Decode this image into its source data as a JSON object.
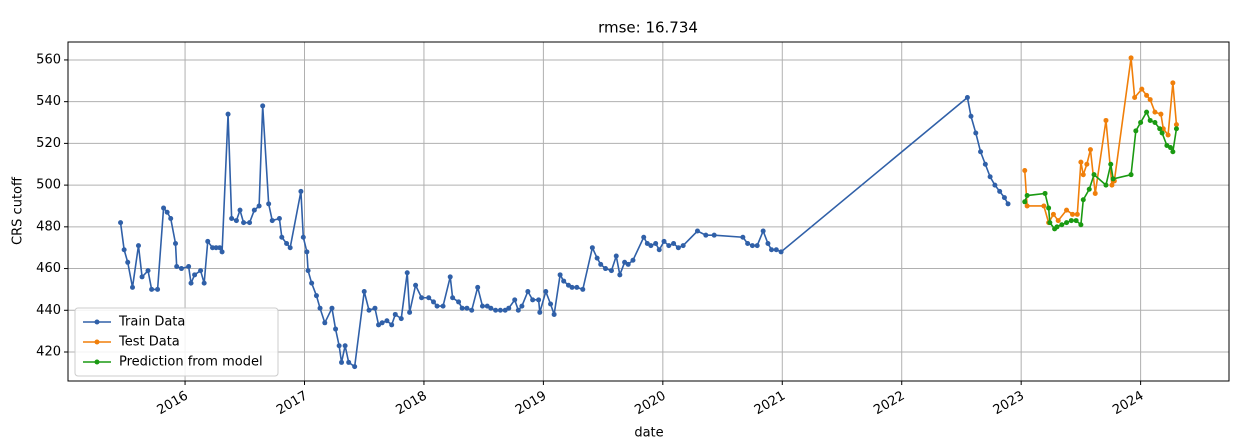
{
  "chart_data": {
    "type": "line",
    "title": "rmse: 16.734",
    "x_label": "date",
    "y_label": "CRS cutoff",
    "xlim": [
      2015.02,
      2024.74
    ],
    "xticks": [
      2016,
      2017,
      2018,
      2019,
      2020,
      2021,
      2022,
      2023,
      2024
    ],
    "ylim": [
      406.1,
      568.6
    ],
    "yticks": [
      420,
      440,
      460,
      480,
      500,
      520,
      540,
      560
    ],
    "grid": true,
    "legend": "lower left",
    "series": [
      {
        "name": "Train Data",
        "color": "#3060a8",
        "x": [
          2015.46,
          2015.49,
          2015.52,
          2015.56,
          2015.61,
          2015.64,
          2015.69,
          2015.72,
          2015.77,
          2015.82,
          2015.85,
          2015.88,
          2015.92,
          2015.93,
          2015.97,
          2016.03,
          2016.05,
          2016.08,
          2016.13,
          2016.16,
          2016.19,
          2016.23,
          2016.26,
          2016.29,
          2016.31,
          2016.36,
          2016.39,
          2016.43,
          2016.46,
          2016.49,
          2016.54,
          2016.58,
          2016.62,
          2016.65,
          2016.7,
          2016.73,
          2016.79,
          2016.81,
          2016.85,
          2016.88,
          2016.97,
          2016.99,
          2017.02,
          2017.03,
          2017.06,
          2017.1,
          2017.13,
          2017.17,
          2017.23,
          2017.26,
          2017.29,
          2017.31,
          2017.34,
          2017.37,
          2017.42,
          2017.5,
          2017.54,
          2017.59,
          2017.62,
          2017.65,
          2017.69,
          2017.73,
          2017.76,
          2017.81,
          2017.86,
          2017.88,
          2017.93,
          2017.98,
          2018.04,
          2018.08,
          2018.11,
          2018.16,
          2018.22,
          2018.24,
          2018.29,
          2018.32,
          2018.36,
          2018.4,
          2018.45,
          2018.49,
          2018.53,
          2018.56,
          2018.6,
          2018.64,
          2018.68,
          2018.71,
          2018.76,
          2018.79,
          2018.82,
          2018.87,
          2018.91,
          2018.96,
          2018.97,
          2019.02,
          2019.06,
          2019.09,
          2019.14,
          2019.17,
          2019.21,
          2019.24,
          2019.28,
          2019.33,
          2019.41,
          2019.45,
          2019.48,
          2019.52,
          2019.57,
          2019.61,
          2019.64,
          2019.68,
          2019.71,
          2019.75,
          2019.84,
          2019.87,
          2019.9,
          2019.94,
          2019.97,
          2020.01,
          2020.05,
          2020.09,
          2020.13,
          2020.17,
          2020.29,
          2020.36,
          2020.43,
          2020.67,
          2020.71,
          2020.75,
          2020.79,
          2020.84,
          2020.88,
          2020.91,
          2020.95,
          2020.99,
          2022.55,
          2022.58,
          2022.62,
          2022.66,
          2022.7,
          2022.74,
          2022.78,
          2022.82,
          2022.86,
          2022.89
        ],
        "values": [
          482,
          469,
          463,
          451,
          471,
          456,
          459,
          450,
          450,
          489,
          487,
          484,
          472,
          461,
          460,
          461,
          453,
          457,
          459,
          453,
          473,
          470,
          470,
          470,
          468,
          534,
          484,
          483,
          488,
          482,
          482,
          488,
          490,
          538,
          491,
          483,
          484,
          475,
          472,
          470,
          497,
          475,
          468,
          459,
          453,
          447,
          441,
          434,
          441,
          431,
          423,
          415,
          423,
          415,
          413,
          449,
          440,
          441,
          433,
          434,
          435,
          433,
          438,
          436,
          458,
          439,
          452,
          446,
          446,
          444,
          442,
          442,
          456,
          446,
          444,
          441,
          441,
          440,
          451,
          442,
          442,
          441,
          440,
          440,
          440,
          441,
          445,
          440,
          442,
          449,
          445,
          445,
          439,
          449,
          443,
          438,
          457,
          454,
          452,
          451,
          451,
          450,
          470,
          465,
          462,
          460,
          459,
          466,
          457,
          463,
          462,
          464,
          475,
          472,
          471,
          472,
          469,
          473,
          471,
          472,
          470,
          471,
          478,
          476,
          476,
          475,
          472,
          471,
          471,
          478,
          472,
          469,
          469,
          468,
          542,
          533,
          525,
          516,
          510,
          504,
          500,
          497,
          494,
          491
        ]
      },
      {
        "name": "Test Data",
        "color": "#f07f0a",
        "x": [
          2023.03,
          2023.05,
          2023.19,
          2023.23,
          2023.27,
          2023.31,
          2023.38,
          2023.43,
          2023.47,
          2023.5,
          2023.52,
          2023.55,
          2023.58,
          2023.62,
          2023.71,
          2023.76,
          2023.78,
          2023.92,
          2023.95,
          2024.01,
          2024.05,
          2024.08,
          2024.12,
          2024.17,
          2024.19,
          2024.23,
          2024.27,
          2024.3
        ],
        "values": [
          507,
          490,
          490,
          482,
          486,
          483,
          488,
          486,
          486,
          511,
          505,
          510,
          517,
          496,
          531,
          500,
          502,
          561,
          542,
          546,
          543,
          541,
          535,
          534,
          527,
          524,
          549,
          529
        ]
      },
      {
        "name": "Prediction from model",
        "color": "#1a9a12",
        "x": [
          2023.03,
          2023.05,
          2023.2,
          2023.23,
          2023.24,
          2023.28,
          2023.3,
          2023.34,
          2023.38,
          2023.42,
          2023.46,
          2023.5,
          2023.52,
          2023.57,
          2023.61,
          2023.71,
          2023.75,
          2023.77,
          2023.92,
          2023.96,
          2024.0,
          2024.05,
          2024.08,
          2024.12,
          2024.16,
          2024.18,
          2024.22,
          2024.25,
          2024.27,
          2024.3
        ],
        "values": [
          492,
          495,
          496,
          489,
          482,
          479,
          480,
          481,
          482,
          483,
          483,
          481,
          493,
          498,
          505,
          500,
          510,
          503,
          505,
          526,
          530,
          535,
          531,
          530,
          527,
          525,
          519,
          518,
          516,
          527
        ]
      }
    ]
  }
}
